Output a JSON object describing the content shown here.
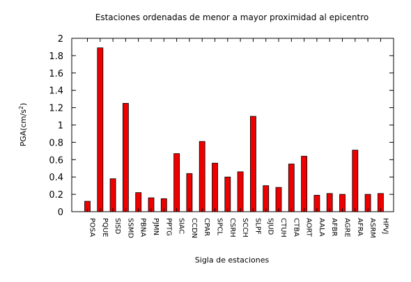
{
  "chart_data": {
    "type": "bar",
    "title": "Estaciones ordenadas de menor a mayor proximidad al epicentro",
    "xlabel": "Sigla de estaciones",
    "ylabel": "PGA(cm/s",
    "ylabel_superscript": "2",
    "ylabel_close": ")",
    "ylim": [
      0,
      2
    ],
    "yticks": [
      "0",
      "0.2",
      "0.4",
      "0.6",
      "0.8",
      "1",
      "1.2",
      "1.4",
      "1.6",
      "1.8",
      "2"
    ],
    "grid": false,
    "bar_color": "#ee0000",
    "categories": [
      "POSA",
      "PQUE",
      "SISD",
      "SSMD",
      "PBNA",
      "PJMN",
      "PPTG",
      "SIAC",
      "CCDN",
      "CPAR",
      "SPCL",
      "CSRH",
      "SCCH",
      "SLPF",
      "SJUD",
      "CTUH",
      "CTBA",
      "AORT",
      "AALA",
      "AFBR",
      "AGRE",
      "AFRA",
      "ASRM",
      "HPVJ"
    ],
    "values": [
      0.12,
      1.89,
      0.38,
      1.25,
      0.22,
      0.16,
      0.15,
      0.67,
      0.44,
      0.81,
      0.56,
      0.4,
      0.46,
      1.1,
      0.3,
      0.28,
      0.55,
      0.64,
      0.19,
      0.21,
      0.2,
      0.71,
      0.2,
      0.21
    ]
  }
}
